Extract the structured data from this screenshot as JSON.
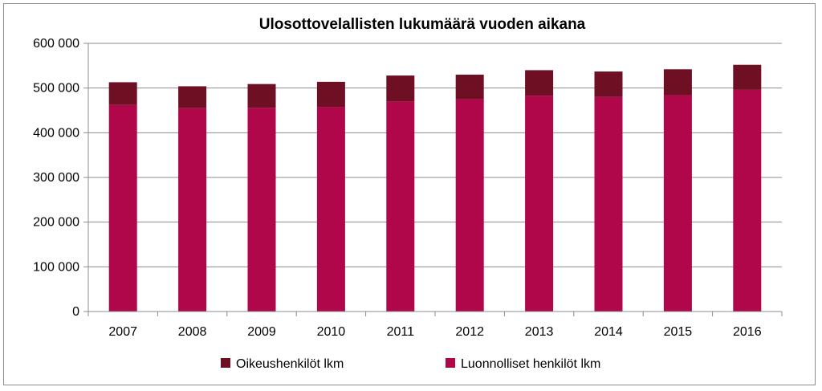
{
  "chart_data": {
    "type": "bar",
    "stacked": true,
    "title": "Ulosottovelallisten lukumäärä vuoden aikana",
    "xlabel": "",
    "ylabel": "",
    "categories": [
      "2007",
      "2008",
      "2009",
      "2010",
      "2011",
      "2012",
      "2013",
      "2014",
      "2015",
      "2016"
    ],
    "series": [
      {
        "name": "Luonnolliset henkilöt lkm",
        "color": "#b0064a",
        "values": [
          462000,
          455000,
          456000,
          458000,
          470000,
          475000,
          483000,
          480000,
          484000,
          496000
        ]
      },
      {
        "name": "Oikeushenkilöt lkm",
        "color": "#6e0f24",
        "values": [
          51000,
          49000,
          53000,
          56000,
          58000,
          55000,
          57000,
          57000,
          58000,
          56000
        ]
      }
    ],
    "ylim": [
      0,
      600000
    ],
    "yticks": [
      0,
      100000,
      200000,
      300000,
      400000,
      500000,
      600000
    ],
    "ytick_labels": [
      "0",
      "100 000",
      "200 000",
      "300 000",
      "400 000",
      "500 000",
      "600 000"
    ],
    "grid": true,
    "legend": {
      "position": "bottom",
      "order": [
        "Oikeushenkilöt lkm",
        "Luonnolliset henkilöt lkm"
      ]
    }
  }
}
